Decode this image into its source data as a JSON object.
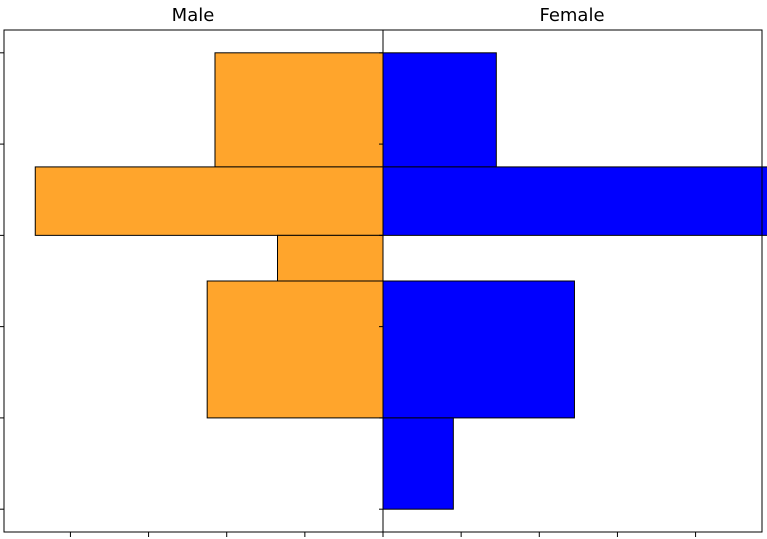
{
  "chart_data": {
    "type": "bar",
    "orientation": "horizontal",
    "layout": "population-pyramid",
    "panels": [
      {
        "title": "Male",
        "direction": "left",
        "color": "#ffa52c",
        "bars": [
          {
            "y0": 0.0,
            "y1": 1.25,
            "value": 2.15
          },
          {
            "y0": 1.25,
            "y1": 2.0,
            "value": 4.45
          },
          {
            "y0": 2.0,
            "y1": 2.5,
            "value": 1.35
          },
          {
            "y0": 2.5,
            "y1": 4.0,
            "value": 2.25
          }
        ]
      },
      {
        "title": "Female",
        "direction": "right",
        "color": "#0000ff",
        "bars": [
          {
            "y0": 0.0,
            "y1": 1.25,
            "value": 1.45
          },
          {
            "y0": 1.25,
            "y1": 2.0,
            "value": 5.0
          },
          {
            "y0": 2.5,
            "y1": 4.0,
            "value": 2.45
          },
          {
            "y0": 4.0,
            "y1": 5.0,
            "value": 0.9
          }
        ]
      }
    ],
    "xlim_left": [
      4.85,
      0
    ],
    "xlim_right": [
      0,
      4.85
    ],
    "ylim": [
      -0.25,
      5.25
    ],
    "y_inverted": true,
    "x_ticks": [
      0,
      1,
      2,
      3,
      4
    ],
    "y_ticks": [
      0,
      1,
      2,
      3,
      4,
      5
    ],
    "tick_labels_visible": false,
    "grid": false,
    "bar_edge_color": "#000000"
  }
}
